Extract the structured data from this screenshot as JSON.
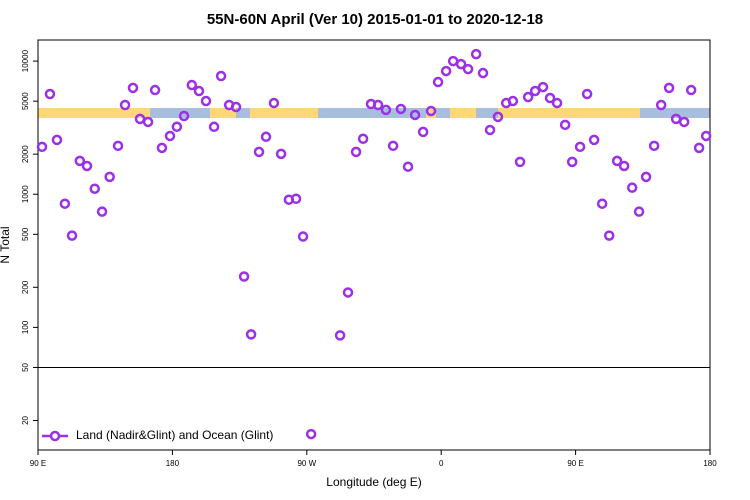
{
  "chart_data": {
    "type": "scatter",
    "title": "55N-60N April (Ver 10)   2015-01-01 to 2020-12-18",
    "x_label": "Longitude (deg E)",
    "y_label": "N Total",
    "xlim": [
      90,
      540
    ],
    "ylim": [
      12,
      14400
    ],
    "y_scale": "log",
    "xticks": [
      {
        "value": 90,
        "label": "90 E"
      },
      180,
      {
        "value": 270,
        "label": "90 W"
      },
      {
        "value": 360,
        "label": "0"
      },
      {
        "value": 450,
        "label": "90 E"
      },
      {
        "value": 540,
        "label": "180"
      }
    ],
    "yticks": [
      20,
      50,
      100,
      200,
      500,
      1000,
      2000,
      5000,
      10000
    ],
    "hline": 50,
    "legend": "bottom-left",
    "series": [
      {
        "name": "Land (Nadir&Glint) and Ocean (Glint)",
        "color": "#9b30e8",
        "x": [
          92.7,
          98,
          102.7,
          108,
          112.8,
          118,
          122.8,
          128,
          132.9,
          138,
          143.6,
          148.3,
          153.6,
          158.3,
          163.7,
          168.4,
          173,
          178.4,
          183,
          187.8,
          193,
          197.8,
          202.5,
          207.9,
          212.6,
          218,
          222.6,
          228,
          232.7,
          238,
          242.7,
          248,
          252.8,
          258,
          262.8,
          267.5,
          272.9,
          292.3,
          297.6,
          303,
          307.7,
          313,
          317.7,
          323,
          327.8,
          333,
          337.8,
          342.5,
          347.9,
          353.2,
          357.9,
          363.3,
          368,
          373.3,
          378,
          383.4,
          388,
          392.7,
          398,
          403.5,
          408,
          412.8,
          418.2,
          422.9,
          428.2,
          432.9,
          437.6,
          443,
          447.7,
          453,
          457.7,
          462.4,
          467.8,
          472.5,
          477.8,
          482.5,
          487.9,
          492.5,
          497.2,
          502.6,
          507.3,
          512.6,
          517.3,
          522.7,
          527.4,
          532.7,
          537.4
        ],
        "values": [
          2270,
          5660,
          2560,
          849,
          489,
          1780,
          1630,
          1100,
          740,
          1350,
          2310,
          4680,
          6290,
          3680,
          3490,
          6060,
          2230,
          2740,
          3210,
          3870,
          6610,
          5960,
          5010,
          3210,
          7720,
          4680,
          4520,
          241,
          88.6,
          2080,
          2700,
          4840,
          2010,
          910,
          925,
          481,
          15.8,
          87.1,
          183,
          2080,
          2610,
          4760,
          4680,
          4300,
          2310,
          4370,
          1610,
          3940,
          2940,
          4220,
          6960,
          8410,
          10000,
          9490,
          8710,
          11280,
          8130,
          3040,
          3810,
          4840,
          5010,
          1750,
          5370,
          5960,
          6380,
          5280,
          4840,
          3320,
          1750,
          2270,
          5660,
          2560,
          849,
          489,
          1780,
          1630,
          1120,
          740,
          1350,
          2310,
          4680,
          6290,
          3680,
          3490,
          6060,
          2230,
          2740
        ]
      }
    ]
  }
}
